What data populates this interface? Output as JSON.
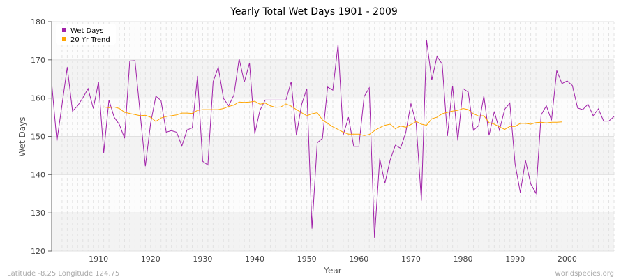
{
  "chart_data": {
    "type": "line",
    "title": "Yearly Total Wet Days 1901 - 2009",
    "xlabel": "Year",
    "ylabel": "Wet Days",
    "xlim": [
      1901,
      2009
    ],
    "ylim": [
      120,
      180
    ],
    "xticks": [
      1910,
      1920,
      1930,
      1940,
      1950,
      1960,
      1970,
      1980,
      1990,
      2000
    ],
    "yticks": [
      120,
      130,
      140,
      150,
      160,
      170,
      180
    ],
    "grid": true,
    "legend_position": "top-left",
    "series": [
      {
        "name": "Wet Days",
        "color": "#a020a8",
        "x_start": 1901,
        "values": [
          164.1,
          148.7,
          158.3,
          168.1,
          156.6,
          158.0,
          160.1,
          162.5,
          157.3,
          164.3,
          145.7,
          159.5,
          155.0,
          153.1,
          149.5,
          169.7,
          169.8,
          155.9,
          142.2,
          153.4,
          160.5,
          159.4,
          151.1,
          151.5,
          151.1,
          147.5,
          151.7,
          152.2,
          165.8,
          143.5,
          142.5,
          164.3,
          168.1,
          159.9,
          158.0,
          160.8,
          170.3,
          164.2,
          169.2,
          150.7,
          156.8,
          159.5,
          159.5,
          159.5,
          159.5,
          159.5,
          164.3,
          150.3,
          158.3,
          162.5,
          125.9,
          148.3,
          149.5,
          162.9,
          162.1,
          174.1,
          150.4,
          155.0,
          147.4,
          147.4,
          160.4,
          162.7,
          123.5,
          144.2,
          137.7,
          143.8,
          147.7,
          146.9,
          151.0,
          158.6,
          153.4,
          133.2,
          175.2,
          164.7,
          170.9,
          168.9,
          150.1,
          163.2,
          148.9,
          162.5,
          161.6,
          151.6,
          152.8,
          160.6,
          150.3,
          156.5,
          151.6,
          157.1,
          158.7,
          142.8,
          135.3,
          143.7,
          137.6,
          135.1,
          155.6,
          158.0,
          154.2,
          167.2,
          163.8,
          164.5,
          163.3,
          157.4,
          157.0,
          158.4,
          155.4,
          157.2,
          154.0,
          154.0,
          155.2
        ]
      },
      {
        "name": "20 Yr Trend",
        "color": "#ffa500",
        "x_start": 1911,
        "values": [
          157.7,
          157.5,
          157.7,
          157.3,
          156.3,
          156.0,
          155.7,
          155.4,
          155.5,
          155.0,
          153.9,
          154.8,
          155.2,
          155.4,
          155.6,
          156.1,
          156.1,
          156.0,
          156.8,
          157.0,
          157.0,
          157.0,
          157.0,
          157.3,
          157.8,
          158.2,
          159.0,
          158.9,
          159.0,
          159.2,
          158.4,
          158.7,
          158.0,
          157.6,
          157.7,
          158.5,
          157.9,
          157.0,
          156.2,
          155.4,
          155.9,
          156.2,
          154.3,
          153.4,
          152.5,
          151.8,
          151.1,
          150.6,
          150.6,
          150.6,
          150.2,
          150.5,
          151.5,
          152.3,
          152.9,
          153.2,
          152.0,
          152.7,
          152.4,
          153.1,
          153.9,
          153.2,
          152.9,
          154.6,
          155.0,
          155.9,
          156.3,
          156.6,
          156.8,
          157.3,
          157.0,
          155.9,
          155.3,
          155.4,
          153.6,
          153.2,
          152.5,
          151.8,
          152.6,
          152.6,
          153.4,
          153.4,
          153.2,
          153.6,
          153.7,
          153.5,
          153.7,
          153.7,
          153.8
        ]
      }
    ]
  },
  "footer": {
    "location": "Latitude -8.25 Longitude 124.75",
    "source": "worldspecies.org"
  }
}
